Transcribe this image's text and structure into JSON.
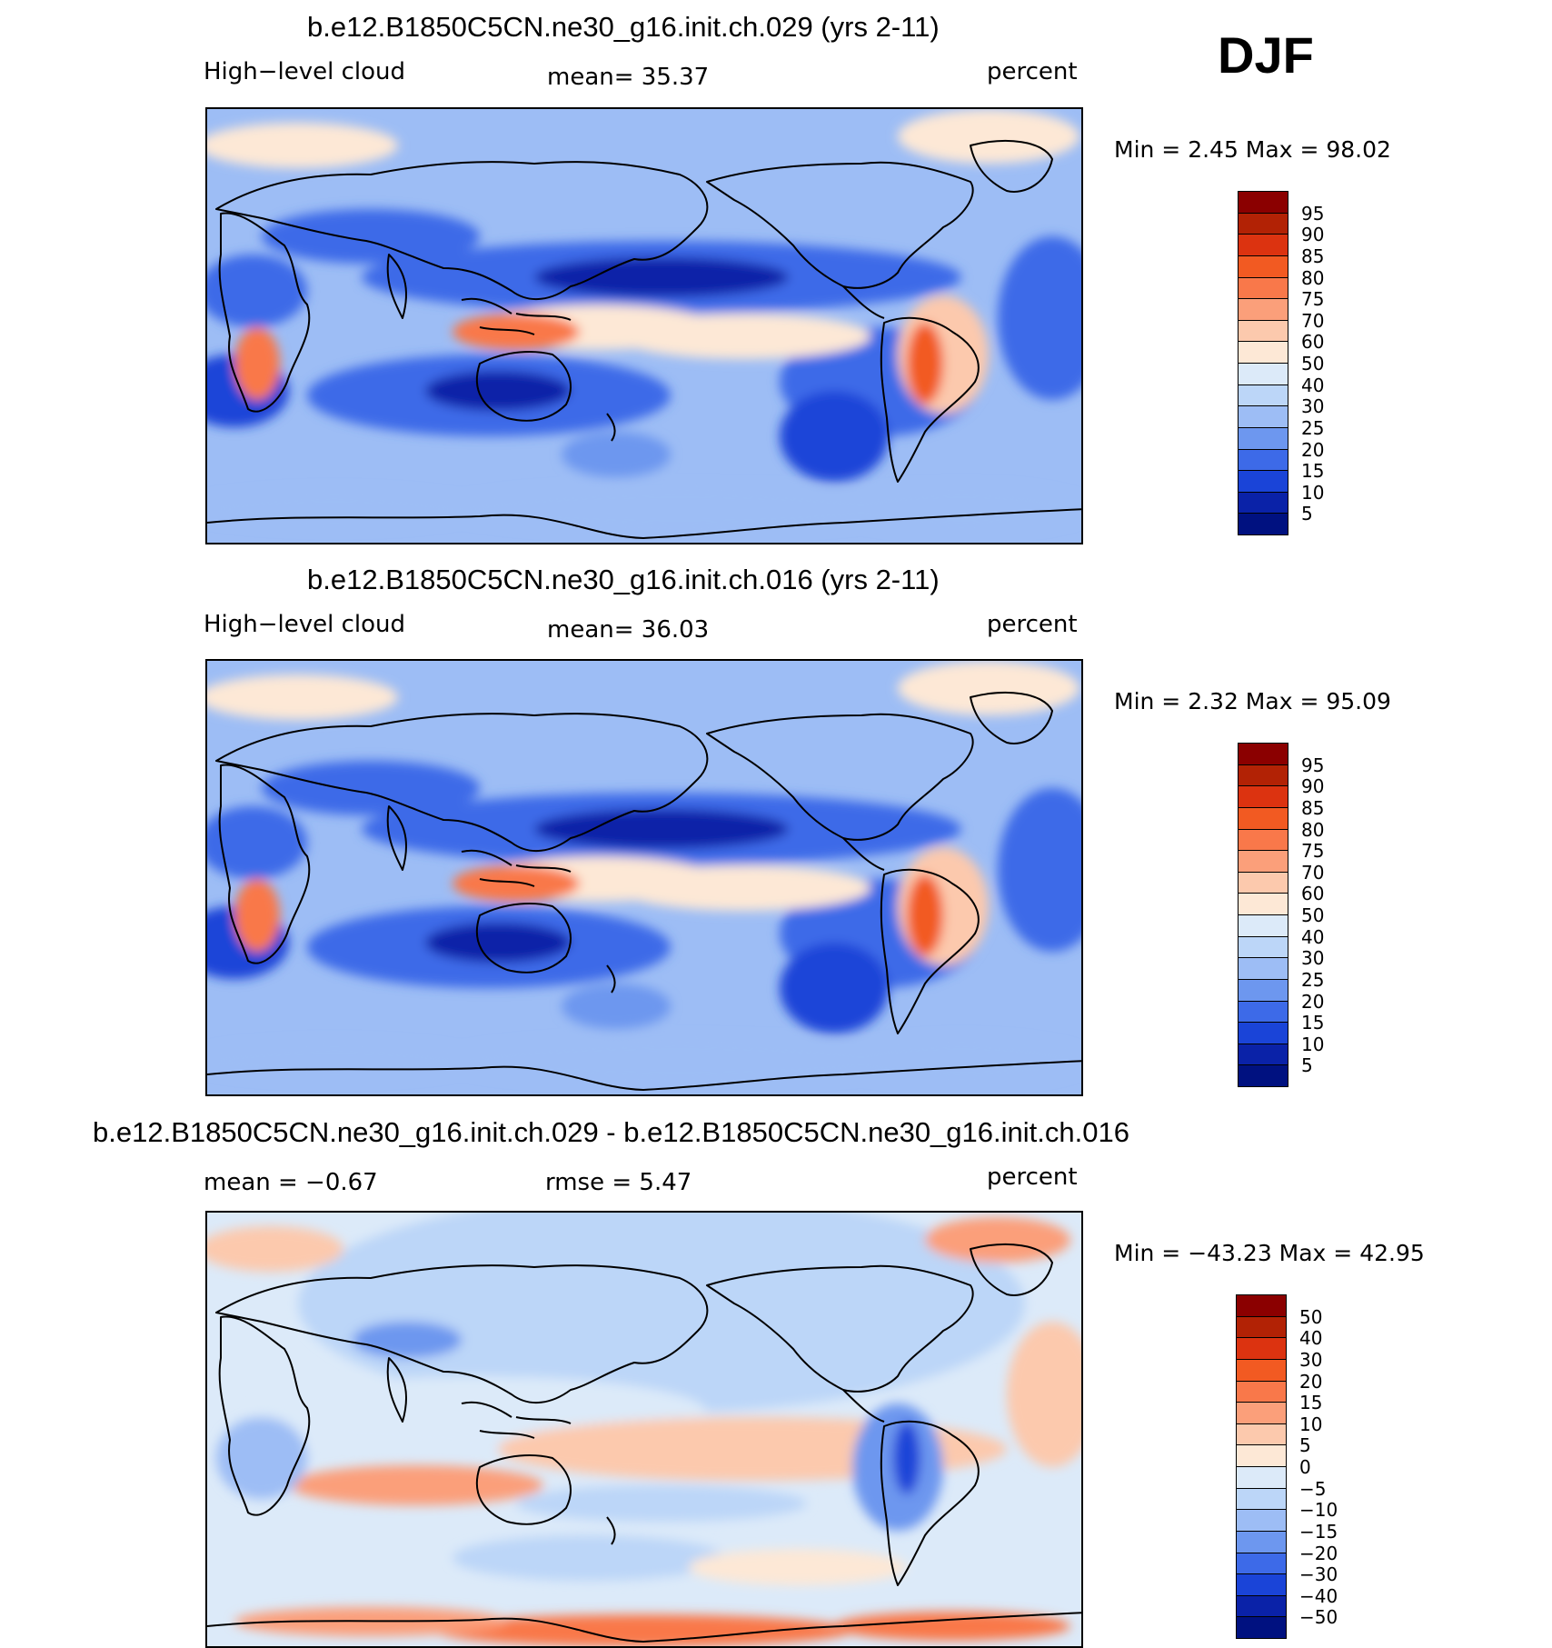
{
  "season": "DJF",
  "panels": [
    {
      "title": "b.e12.B1850C5CN.ne30_g16.init.ch.029 (yrs 2-11)",
      "left_label": "High−level cloud",
      "center_label": "mean=   35.37",
      "right_label": "percent",
      "stats": "Min =    2.45 Max =   98.02",
      "map_kind": "absolute",
      "colorbar": {
        "levels": [
          "95",
          "90",
          "85",
          "80",
          "75",
          "70",
          "60",
          "50",
          "40",
          "30",
          "25",
          "20",
          "15",
          "10",
          "5"
        ],
        "colors": [
          "#8b0000",
          "#b22205",
          "#dc3310",
          "#f25a22",
          "#f9784a",
          "#fb9f7a",
          "#fcc9ad",
          "#fde8d6",
          "#dceaf9",
          "#bcd6f8",
          "#9dbdf5",
          "#6d97ef",
          "#3d6ae8",
          "#1a44d8",
          "#0a22a8",
          "#001180"
        ]
      }
    },
    {
      "title": "b.e12.B1850C5CN.ne30_g16.init.ch.016 (yrs 2-11)",
      "left_label": "High−level cloud",
      "center_label": "mean=   36.03",
      "right_label": "percent",
      "stats": "Min =    2.32 Max =   95.09",
      "map_kind": "absolute",
      "colorbar": {
        "levels": [
          "95",
          "90",
          "85",
          "80",
          "75",
          "70",
          "60",
          "50",
          "40",
          "30",
          "25",
          "20",
          "15",
          "10",
          "5"
        ],
        "colors": [
          "#8b0000",
          "#b22205",
          "#dc3310",
          "#f25a22",
          "#f9784a",
          "#fb9f7a",
          "#fcc9ad",
          "#fde8d6",
          "#dceaf9",
          "#bcd6f8",
          "#9dbdf5",
          "#6d97ef",
          "#3d6ae8",
          "#1a44d8",
          "#0a22a8",
          "#001180"
        ]
      }
    },
    {
      "title": "b.e12.B1850C5CN.ne30_g16.init.ch.029 - b.e12.B1850C5CN.ne30_g16.init.ch.016",
      "left_label": "mean =   −0.67",
      "center_label": "rmse =    5.47",
      "right_label": "percent",
      "stats": "Min = −43.23 Max =   42.95",
      "map_kind": "difference",
      "colorbar": {
        "levels": [
          "50",
          "40",
          "30",
          "20",
          "15",
          "10",
          "5",
          "0",
          "−5",
          "−10",
          "−15",
          "−20",
          "−30",
          "−40",
          "−50"
        ],
        "colors": [
          "#8b0000",
          "#b22205",
          "#dc3310",
          "#f25a22",
          "#f9784a",
          "#fb9f7a",
          "#fcc9ad",
          "#fde8d6",
          "#dceaf9",
          "#bcd6f8",
          "#9dbdf5",
          "#6d97ef",
          "#3d6ae8",
          "#1a44d8",
          "#0a22a8",
          "#001180"
        ]
      }
    }
  ]
}
